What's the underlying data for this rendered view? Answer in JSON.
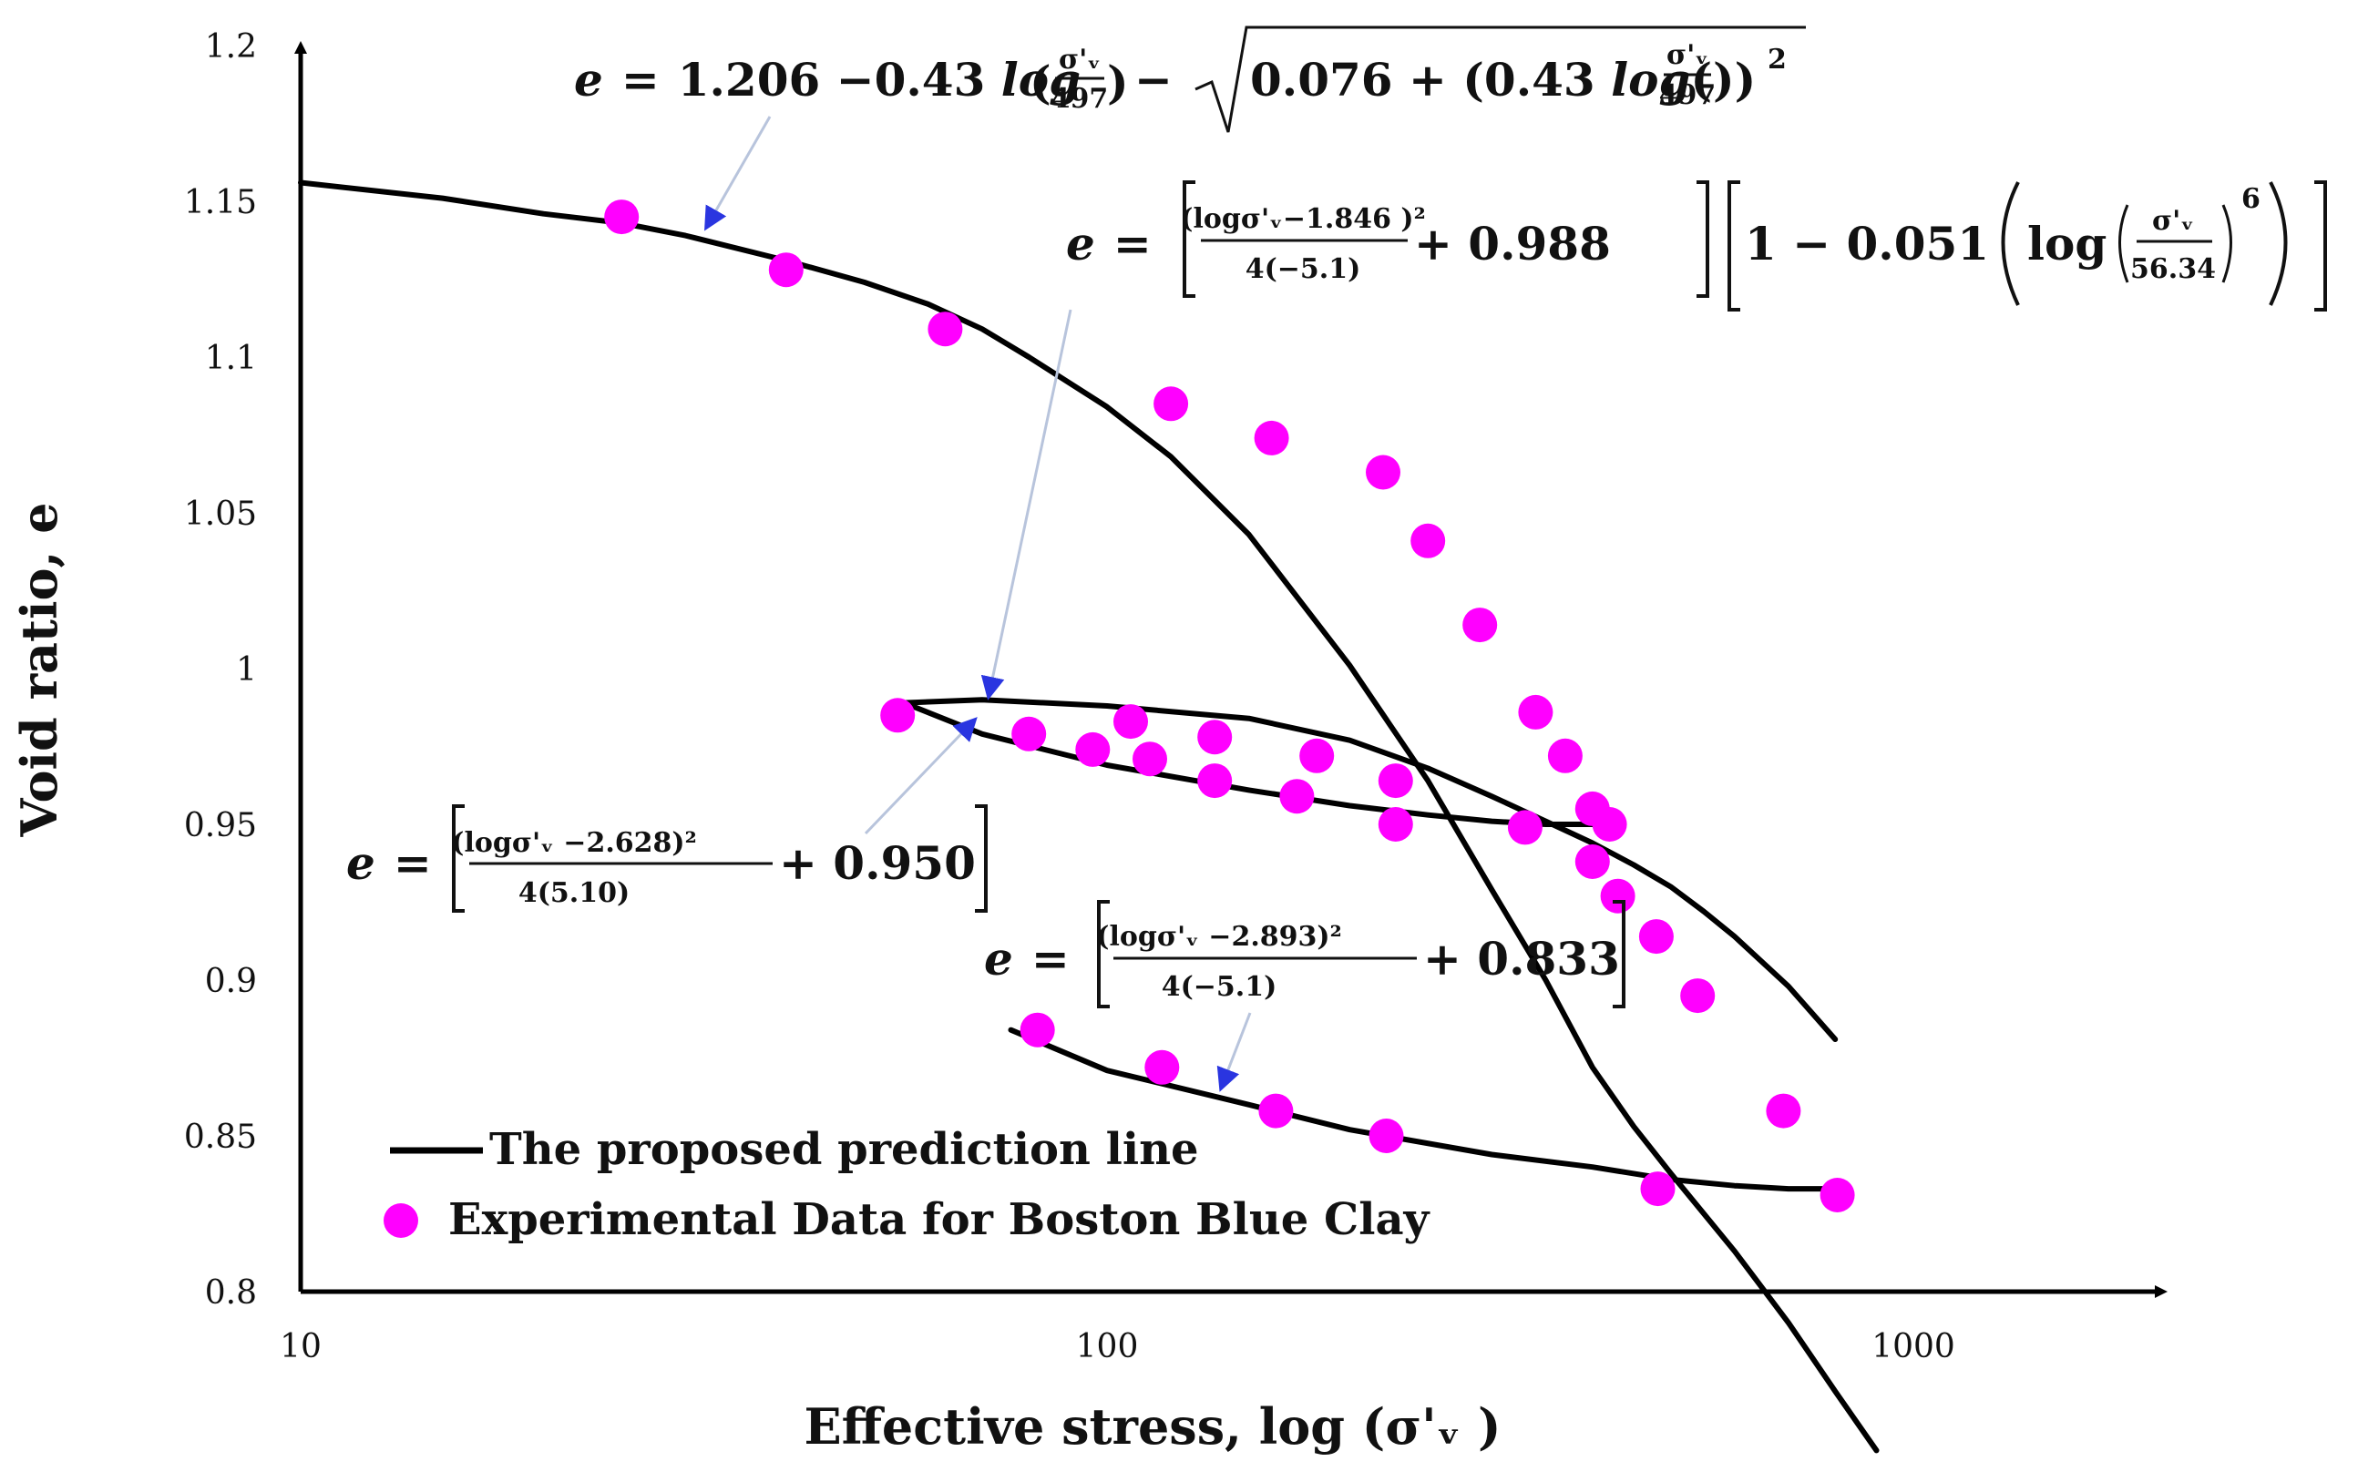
{
  "chart_data": {
    "type": "scatter",
    "title": "",
    "xlabel": "Effective stress, log (σ'ᵥ )",
    "ylabel": "Void ratio, e",
    "x_scale": "log",
    "xlim": [
      10,
      1800
    ],
    "ylim": [
      0.8,
      1.2
    ],
    "x_ticks": [
      {
        "value": 10,
        "label": "10"
      },
      {
        "value": 100,
        "label": "100"
      },
      {
        "value": 1000,
        "label": "1000"
      }
    ],
    "y_ticks": [
      {
        "value": 0.8,
        "label": "0.8"
      },
      {
        "value": 0.85,
        "label": "0.85"
      },
      {
        "value": 0.9,
        "label": "0.9"
      },
      {
        "value": 0.95,
        "label": "0.95"
      },
      {
        "value": 1.0,
        "label": "1"
      },
      {
        "value": 1.05,
        "label": "1.05"
      },
      {
        "value": 1.1,
        "label": "1.1"
      },
      {
        "value": 1.15,
        "label": "1.15"
      },
      {
        "value": 1.2,
        "label": "1.2"
      }
    ],
    "grid": false,
    "legend_placement": "bottom-left",
    "series": [
      {
        "name": "The proposed prediction line",
        "kind": "line",
        "color": "#000000",
        "segments": [
          {
            "id": "virgin-compression",
            "points": [
              [
                10,
                1.156
              ],
              [
                15,
                1.151
              ],
              [
                20,
                1.146
              ],
              [
                25,
                1.143
              ],
              [
                30,
                1.139
              ],
              [
                40,
                1.131
              ],
              [
                50,
                1.124
              ],
              [
                60,
                1.117
              ],
              [
                70,
                1.109
              ],
              [
                80,
                1.1
              ],
              [
                100,
                1.084
              ],
              [
                120,
                1.068
              ],
              [
                150,
                1.043
              ],
              [
                200,
                1.001
              ],
              [
                250,
                0.964
              ],
              [
                300,
                0.929
              ],
              [
                350,
                0.9
              ],
              [
                400,
                0.872
              ],
              [
                450,
                0.853
              ],
              [
                500,
                0.838
              ],
              [
                600,
                0.813
              ],
              [
                700,
                0.79
              ],
              [
                800,
                0.768
              ],
              [
                900,
                0.749
              ]
            ]
          },
          {
            "id": "unload-reload-upper",
            "points": [
              [
                56,
                0.989
              ],
              [
                70,
                0.99
              ],
              [
                100,
                0.988
              ],
              [
                150,
                0.984
              ],
              [
                200,
                0.977
              ],
              [
                250,
                0.968
              ],
              [
                300,
                0.959
              ],
              [
                350,
                0.951
              ],
              [
                400,
                0.944
              ],
              [
                450,
                0.937
              ],
              [
                500,
                0.93
              ],
              [
                550,
                0.922
              ],
              [
                600,
                0.914
              ],
              [
                700,
                0.898
              ],
              [
                800,
                0.881
              ]
            ]
          },
          {
            "id": "unload-reload-lower",
            "points": [
              [
                56,
                0.989
              ],
              [
                70,
                0.979
              ],
              [
                100,
                0.969
              ],
              [
                150,
                0.961
              ],
              [
                200,
                0.956
              ],
              [
                250,
                0.953
              ],
              [
                300,
                0.951
              ],
              [
                350,
                0.95
              ],
              [
                400,
                0.95
              ],
              [
                430,
                0.95
              ]
            ]
          },
          {
            "id": "reload-lower",
            "points": [
              [
                76,
                0.884
              ],
              [
                100,
                0.871
              ],
              [
                150,
                0.86
              ],
              [
                200,
                0.852
              ],
              [
                300,
                0.844
              ],
              [
                400,
                0.84
              ],
              [
                500,
                0.836
              ],
              [
                600,
                0.834
              ],
              [
                700,
                0.833
              ],
              [
                800,
                0.833
              ]
            ]
          }
        ]
      },
      {
        "name": "Experimental Data  for Boston Blue Clay",
        "kind": "scatter",
        "color": "#ff00ff",
        "points": [
          [
            25,
            1.145
          ],
          [
            40,
            1.128
          ],
          [
            63,
            1.109
          ],
          [
            120,
            1.085
          ],
          [
            160,
            1.074
          ],
          [
            220,
            1.063
          ],
          [
            250,
            1.041
          ],
          [
            290,
            1.014
          ],
          [
            340,
            0.986
          ],
          [
            370,
            0.972
          ],
          [
            400,
            0.955
          ],
          [
            420,
            0.95
          ],
          [
            330,
            0.949
          ],
          [
            400,
            0.938
          ],
          [
            430,
            0.927
          ],
          [
            480,
            0.914
          ],
          [
            540,
            0.895
          ],
          [
            690,
            0.858
          ],
          [
            805,
            0.831
          ],
          [
            55,
            0.985
          ],
          [
            80,
            0.979
          ],
          [
            96,
            0.974
          ],
          [
            107,
            0.983
          ],
          [
            113,
            0.971
          ],
          [
            136,
            0.978
          ],
          [
            136,
            0.964
          ],
          [
            172,
            0.959
          ],
          [
            182,
            0.972
          ],
          [
            228,
            0.964
          ],
          [
            228,
            0.95
          ],
          [
            82,
            0.884
          ],
          [
            117,
            0.872
          ],
          [
            162,
            0.858
          ],
          [
            222,
            0.85
          ],
          [
            482,
            0.833
          ]
        ]
      }
    ],
    "annotations": {
      "eq1": {
        "lhs": "e",
        "eq": "=",
        "a": "1.206 −0.43 ",
        "log": "log",
        "paren_l": "(",
        "paren_r": ")",
        "num": "σ'ᵥ",
        "den": "497",
        "mid": " − ",
        "c": "0.076 + (0.43 ",
        "inner_l": "(",
        "inner_r": "))",
        "sq": "2"
      },
      "eq2": {
        "lhs": "e",
        "eq": "=",
        "frac_num": "(logσ'ᵥ−1.846 )²",
        "frac_den": "4(−5.1)",
        "plus": "+ 0.988",
        "b": "1 − 0.051",
        "log": "log",
        "num": "σ'ᵥ",
        "den": "56.34",
        "pow": "6"
      },
      "eq3": {
        "lhs": "e",
        "eq": "=",
        "frac_num": "(logσ'ᵥ −2.628)²",
        "frac_den": "4(5.10)",
        "plus": "+ 0.950"
      },
      "eq4": {
        "lhs": "e",
        "eq": "=",
        "frac_num": "(logσ'ᵥ −2.893)²",
        "frac_den": "4(−5.1)",
        "plus": "+ 0.833"
      }
    }
  }
}
